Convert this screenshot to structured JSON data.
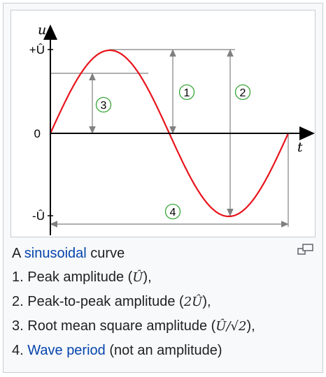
{
  "figure": {
    "axis": {
      "y_label": "u",
      "x_label": "t",
      "ticks": [
        "+Û",
        "0",
        "-Û"
      ]
    },
    "markers": [
      "1",
      "2",
      "3",
      "4"
    ],
    "colors": {
      "curve": "#e8141b",
      "axis": "#000000",
      "guide": "#808080",
      "marker_ring": "#35a635"
    }
  },
  "caption": {
    "title_prefix": "A ",
    "title_link": "sinusoidal",
    "title_suffix": " curve",
    "items": [
      {
        "num": "1.",
        "text": "Peak amplitude (",
        "math": "Û",
        "after": "),",
        "link": ""
      },
      {
        "num": "2.",
        "text": "Peak-to-peak amplitude (",
        "math": "2Û",
        "after": "),",
        "link": ""
      },
      {
        "num": "3.",
        "text": "Root mean square amplitude (",
        "math": "Û/√2",
        "after": "),",
        "link": ""
      },
      {
        "num": "4.",
        "text": "",
        "math": "",
        "after": " (not an amplitude)",
        "link": "Wave period"
      }
    ]
  },
  "icons": {
    "enlarge": "enlarge-icon"
  }
}
